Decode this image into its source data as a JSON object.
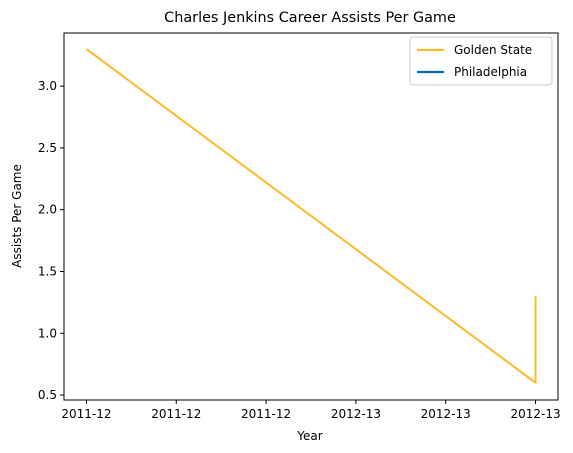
{
  "chart_data": {
    "type": "line",
    "title": "Charles Jenkins  Career Assists Per Game",
    "xlabel": "Year",
    "ylabel": "Assists Per Game",
    "ylim": [
      0.46,
      3.43
    ],
    "y_ticks": [
      0.5,
      1.0,
      1.5,
      2.0,
      2.5,
      3.0
    ],
    "y_tick_labels": [
      "0.5",
      "1.0",
      "1.5",
      "2.0",
      "2.5",
      "3.0"
    ],
    "x_ticks": [
      0.0,
      0.2,
      0.4,
      0.6,
      0.8,
      1.0
    ],
    "x_tick_labels": [
      "2011-12",
      "2011-12",
      "2011-12",
      "2012-13",
      "2012-13",
      "2012-13"
    ],
    "xlim": [
      -0.05,
      1.05
    ],
    "grid": false,
    "legend_position": "top-right",
    "series": [
      {
        "name": "Golden State",
        "color": "#FDB927",
        "points": [
          {
            "x": 0.0,
            "y": 3.3
          },
          {
            "x": 1.0,
            "y": 0.6
          },
          {
            "x": 1.0,
            "y": 1.3
          }
        ]
      },
      {
        "name": "Philadelphia",
        "color": "#006BB6",
        "points": []
      }
    ]
  }
}
